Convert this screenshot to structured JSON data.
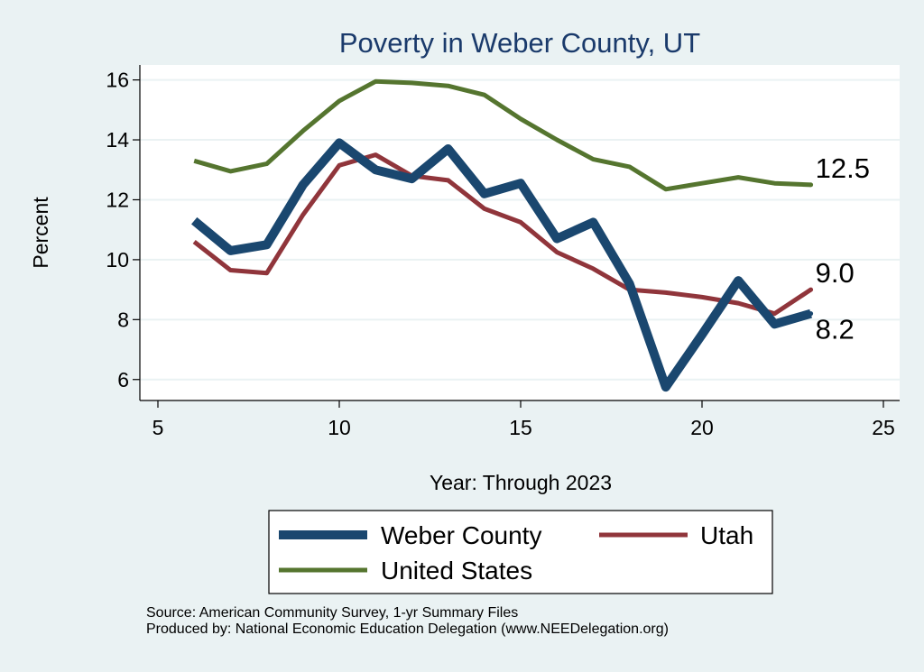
{
  "chart_data": {
    "type": "line",
    "title": "Poverty in Weber County, UT",
    "xlabel": "Year: Through 2023",
    "ylabel": "Percent",
    "xlim": [
      5,
      25
    ],
    "ylim": [
      5.3,
      16.5
    ],
    "xticks": [
      5,
      10,
      15,
      20,
      25
    ],
    "yticks": [
      6,
      8,
      10,
      12,
      14,
      16
    ],
    "grid": true,
    "legend_position": "bottom",
    "series": [
      {
        "name": "Weber County",
        "color": "#1a476f",
        "x": [
          6,
          7,
          8,
          9,
          10,
          11,
          12,
          13,
          14,
          15,
          16,
          17,
          18,
          19,
          20,
          21,
          22,
          23
        ],
        "values": [
          11.3,
          10.3,
          10.5,
          12.5,
          13.9,
          13.0,
          12.7,
          13.7,
          12.2,
          12.55,
          10.7,
          11.25,
          9.2,
          5.75,
          7.5,
          9.3,
          7.85,
          8.2
        ],
        "end_label": "8.2"
      },
      {
        "name": "Utah",
        "color": "#90353b",
        "x": [
          6,
          7,
          8,
          9,
          10,
          11,
          12,
          13,
          14,
          15,
          16,
          17,
          18,
          19,
          20,
          21,
          22,
          23
        ],
        "values": [
          10.6,
          9.65,
          9.55,
          11.5,
          13.15,
          13.5,
          12.8,
          12.65,
          11.7,
          11.25,
          10.25,
          9.7,
          9.0,
          8.9,
          8.75,
          8.55,
          8.2,
          9.0
        ],
        "end_label": "9.0"
      },
      {
        "name": "United States",
        "color": "#55752f",
        "x": [
          6,
          7,
          8,
          9,
          10,
          11,
          12,
          13,
          14,
          15,
          16,
          17,
          18,
          19,
          20,
          21,
          22,
          23
        ],
        "values": [
          13.3,
          12.95,
          13.2,
          14.3,
          15.3,
          15.95,
          15.9,
          15.8,
          15.5,
          14.7,
          14.0,
          13.35,
          13.1,
          12.35,
          12.55,
          12.75,
          12.55,
          12.5
        ],
        "end_label": "12.5"
      }
    ]
  },
  "source": {
    "line1": "Source: American Community Survey, 1-yr Summary Files",
    "line2": "Produced by: National Economic Education Delegation (www.NEEDelegation.org)"
  }
}
